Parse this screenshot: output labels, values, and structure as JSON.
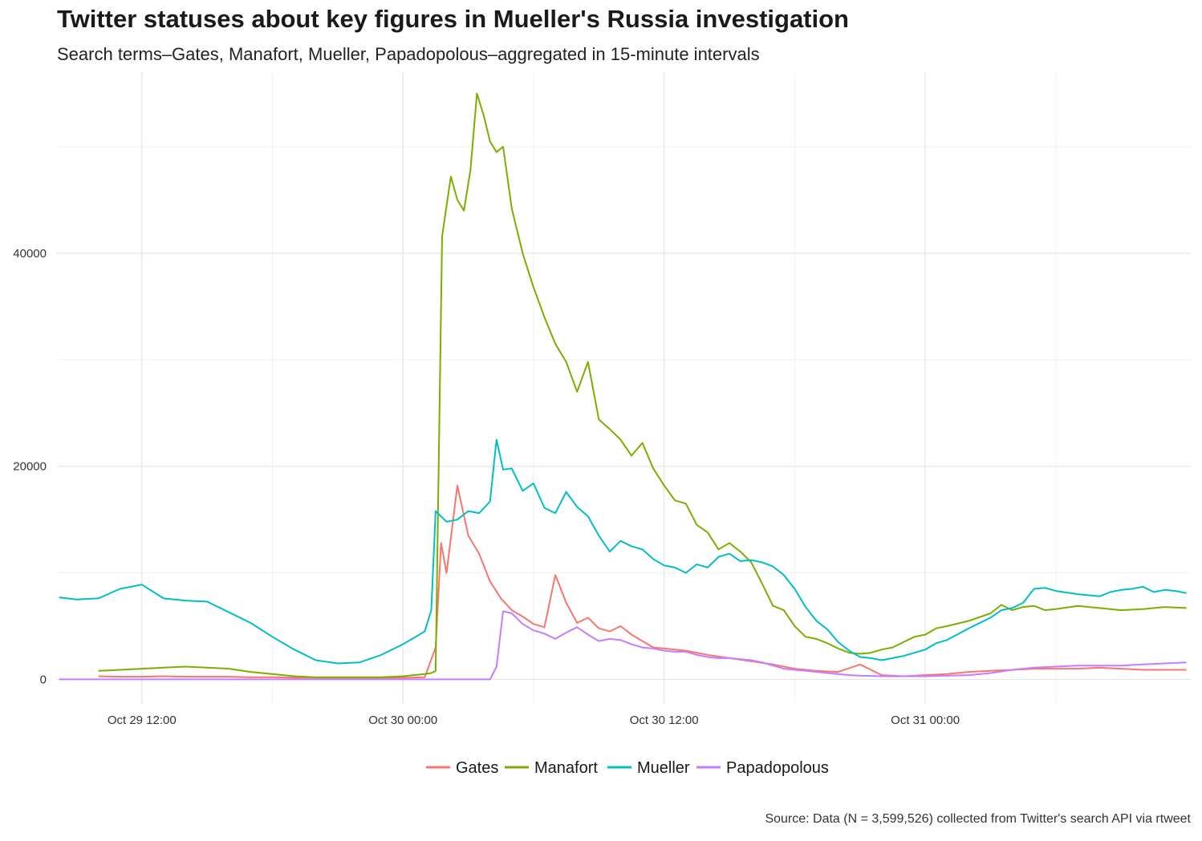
{
  "chart_data": {
    "type": "line",
    "title": "Twitter statuses about key figures in Mueller's Russia investigation",
    "subtitle": "Search terms–Gates, Manafort, Mueller, Papadopolous–aggregated in 15-minute intervals",
    "caption": "Source: Data (N = 3,599,526) collected from Twitter's search API via rtweet",
    "xlabel": "",
    "ylabel": "",
    "x_unit": "hours since Oct 29 00:00",
    "xlim": [
      8.1,
      60.2
    ],
    "ylim": [
      -2300,
      57000
    ],
    "x_ticks": [
      {
        "value": 12,
        "label": "Oct 29 12:00"
      },
      {
        "value": 24,
        "label": "Oct 30 00:00"
      },
      {
        "value": 36,
        "label": "Oct 30 12:00"
      },
      {
        "value": 48,
        "label": "Oct 31 00:00"
      }
    ],
    "y_ticks": [
      {
        "value": 0,
        "label": "0"
      },
      {
        "value": 20000,
        "label": "20000"
      },
      {
        "value": 40000,
        "label": "40000"
      }
    ],
    "grid": true,
    "legend_position": "bottom",
    "colors": {
      "Gates": "#F8766D",
      "Manafort": "#7CAE00",
      "Mueller": "#00BFC4",
      "Papadopolous": "#C77CFF"
    },
    "series": [
      {
        "name": "Gates",
        "x": [
          10,
          11,
          12,
          13,
          14,
          15,
          16,
          17,
          18,
          19,
          20,
          21,
          22,
          23,
          24,
          25,
          25.5,
          25.75,
          26,
          26.5,
          27,
          27.5,
          28,
          28.5,
          29,
          29.5,
          30,
          30.5,
          31,
          31.5,
          32,
          32.5,
          33,
          33.5,
          34,
          34.5,
          35,
          35.5,
          36,
          37,
          38,
          39,
          40,
          41,
          42,
          43,
          44,
          45,
          46,
          47,
          48,
          49,
          50,
          51,
          52,
          53,
          54,
          55,
          56,
          57,
          58,
          59,
          60
        ],
        "y": [
          300,
          250,
          250,
          300,
          250,
          250,
          250,
          200,
          200,
          150,
          150,
          150,
          150,
          150,
          150,
          200,
          3000,
          12800,
          10000,
          18200,
          13500,
          11800,
          9200,
          7600,
          6500,
          5900,
          5200,
          4900,
          9800,
          7200,
          5300,
          5800,
          4800,
          4500,
          5000,
          4200,
          3600,
          3000,
          2900,
          2700,
          2300,
          2000,
          1700,
          1400,
          1000,
          800,
          700,
          1400,
          400,
          300,
          400,
          500,
          700,
          800,
          900,
          1000,
          1000,
          1000,
          1100,
          1000,
          900,
          900,
          900
        ]
      },
      {
        "name": "Manafort",
        "x": [
          10,
          11,
          12,
          13,
          14,
          15,
          16,
          17,
          18,
          19,
          20,
          21,
          22,
          23,
          24,
          25,
          25.3,
          25.5,
          25.8,
          26.2,
          26.5,
          26.8,
          27.1,
          27.4,
          27.7,
          28,
          28.3,
          28.6,
          29,
          29.5,
          30,
          30.5,
          31,
          31.5,
          32,
          32.5,
          33,
          33.5,
          34,
          34.5,
          35,
          35.5,
          36,
          36.5,
          37,
          37.5,
          38,
          38.5,
          39,
          39.5,
          40,
          40.5,
          41,
          41.5,
          42,
          42.5,
          43,
          43.5,
          44,
          44.5,
          45,
          45.5,
          46,
          46.5,
          47,
          47.5,
          48,
          48.5,
          49,
          50,
          51,
          51.5,
          52,
          52.5,
          53,
          53.5,
          54,
          55,
          56,
          57,
          58,
          59,
          60
        ],
        "y": [
          800,
          900,
          1000,
          1100,
          1200,
          1100,
          1000,
          700,
          500,
          300,
          200,
          200,
          200,
          200,
          300,
          500,
          600,
          800,
          41600,
          47200,
          45000,
          44000,
          47800,
          55000,
          53000,
          50500,
          49500,
          50000,
          44200,
          40000,
          36800,
          34000,
          31500,
          29800,
          27000,
          29800,
          24400,
          23500,
          22500,
          21000,
          22200,
          19800,
          18200,
          16800,
          16500,
          14500,
          13800,
          12200,
          12800,
          12000,
          11000,
          9000,
          6900,
          6500,
          5000,
          4000,
          3800,
          3400,
          2900,
          2500,
          2400,
          2500,
          2800,
          3000,
          3500,
          4000,
          4200,
          4800,
          5000,
          5500,
          6200,
          7000,
          6500,
          6800,
          6900,
          6500,
          6600,
          6900,
          6700,
          6500,
          6600,
          6800,
          6700
        ]
      },
      {
        "name": "Mueller",
        "x": [
          8.2,
          9,
          10,
          11,
          12,
          13,
          14,
          15,
          16,
          17,
          18,
          19,
          20,
          21,
          22,
          23,
          24,
          24.5,
          25,
          25.3,
          25.5,
          26,
          26.5,
          27,
          27.5,
          28,
          28.3,
          28.6,
          29,
          29.5,
          30,
          30.5,
          31,
          31.5,
          32,
          32.5,
          33,
          33.5,
          34,
          34.5,
          35,
          35.5,
          36,
          36.5,
          37,
          37.5,
          38,
          38.5,
          39,
          39.5,
          40,
          40.5,
          41,
          41.5,
          42,
          42.5,
          43,
          43.5,
          44,
          44.5,
          45,
          45.5,
          46,
          46.5,
          47,
          47.5,
          48,
          48.5,
          49,
          50,
          51,
          51.5,
          52,
          52.5,
          53,
          53.5,
          54,
          55,
          56,
          56.5,
          57,
          57.5,
          58,
          58.5,
          59,
          59.5,
          60
        ],
        "y": [
          7700,
          7500,
          7600,
          8500,
          8900,
          7600,
          7400,
          7300,
          6300,
          5300,
          4000,
          2800,
          1800,
          1500,
          1600,
          2300,
          3300,
          3900,
          4500,
          6500,
          15800,
          14800,
          15000,
          15800,
          15600,
          16700,
          22500,
          19700,
          19800,
          17700,
          18400,
          16100,
          15600,
          17600,
          16200,
          15300,
          13500,
          12000,
          13000,
          12500,
          12200,
          11300,
          10700,
          10500,
          10000,
          10800,
          10500,
          11500,
          11800,
          11100,
          11200,
          11000,
          10600,
          9800,
          8500,
          6800,
          5500,
          4700,
          3500,
          2700,
          2100,
          2000,
          1800,
          2000,
          2200,
          2500,
          2800,
          3400,
          3700,
          4800,
          5800,
          6500,
          6700,
          7200,
          8500,
          8600,
          8300,
          8000,
          7800,
          8200,
          8400,
          8500,
          8700,
          8200,
          8400,
          8300,
          8100
        ]
      },
      {
        "name": "Papadopolous",
        "x": [
          8.2,
          10,
          12,
          14,
          16,
          18,
          20,
          22,
          24,
          26,
          27,
          28,
          28.3,
          28.6,
          29,
          29.5,
          30,
          30.5,
          31,
          31.5,
          32,
          32.5,
          33,
          33.5,
          34,
          34.5,
          35,
          35.5,
          36,
          36.5,
          37,
          37.5,
          38,
          38.5,
          39,
          39.5,
          40,
          40.5,
          41,
          41.5,
          42,
          42.5,
          43,
          43.5,
          44,
          44.5,
          45,
          46,
          47,
          48,
          49,
          50,
          51,
          52,
          53,
          54,
          55,
          56,
          57,
          58,
          59,
          60
        ],
        "y": [
          0,
          0,
          0,
          0,
          0,
          0,
          0,
          0,
          0,
          0,
          0,
          0,
          1200,
          6400,
          6200,
          5200,
          4600,
          4300,
          3800,
          4400,
          4900,
          4200,
          3600,
          3800,
          3700,
          3300,
          3000,
          2900,
          2700,
          2600,
          2600,
          2300,
          2100,
          2000,
          2000,
          1900,
          1800,
          1600,
          1300,
          1000,
          900,
          800,
          700,
          600,
          500,
          400,
          350,
          300,
          300,
          300,
          350,
          400,
          600,
          900,
          1100,
          1200,
          1300,
          1300,
          1300,
          1400,
          1500,
          1600
        ]
      }
    ]
  }
}
